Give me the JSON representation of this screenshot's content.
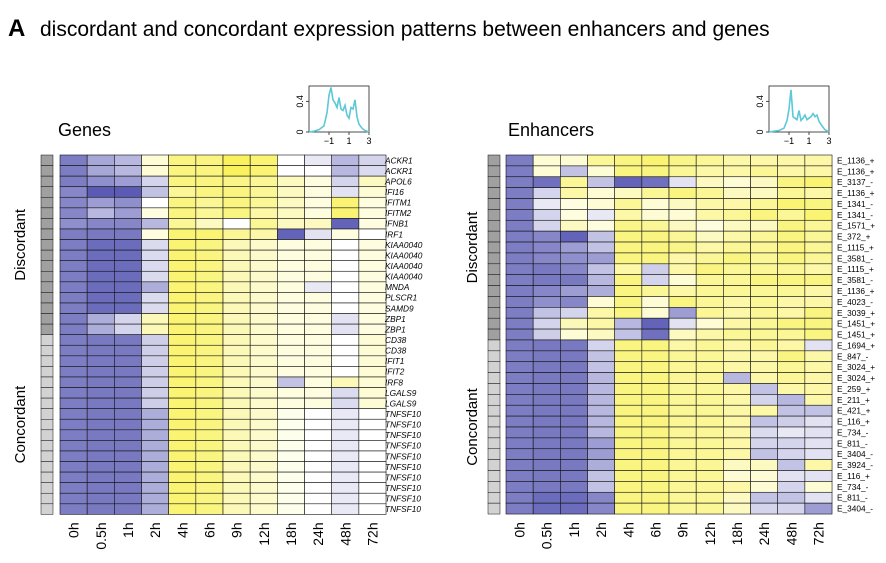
{
  "title": {
    "letter": "A",
    "text": "discordant and concordant expression patterns between enhancers and genes"
  },
  "group_labels": {
    "discordant": "Discordant",
    "concordant": "Concordant"
  },
  "colors": {
    "low": "#5b5bb5",
    "mid": "#ffffff",
    "high": "#f6ec12",
    "group_discordant": "#a0a0a0",
    "group_concordant": "#d2d2d2",
    "key_line": "#5cc8d8"
  },
  "chart_data": [
    {
      "type": "heatmap",
      "title": "Genes",
      "columns": [
        "0h",
        "0.5h",
        "1h",
        "2h",
        "4h",
        "6h",
        "9h",
        "12h",
        "18h",
        "24h",
        "48h",
        "72h"
      ],
      "rows": [
        "ACKR1",
        "ACKR1",
        "APOL6",
        "IFI16",
        "IFITM1",
        "IFITM2",
        "IFNB1",
        "IRF1",
        "KIAA0040",
        "KIAA0040",
        "KIAA0040",
        "KIAA0040",
        "MNDA",
        "PLSCR1",
        "SAMD9",
        "ZBP1",
        "ZBP1",
        "CD38",
        "CD38",
        "IFIT1",
        "IFIT2",
        "IRF8",
        "LGALS9",
        "LGALS9",
        "TNFSF10",
        "TNFSF10",
        "TNFSF10",
        "TNFSF10",
        "TNFSF10",
        "TNFSF10",
        "TNFSF10",
        "TNFSF10",
        "TNFSF10",
        "TNFSF10"
      ],
      "groups": [
        "discordant",
        "discordant",
        "discordant",
        "discordant",
        "discordant",
        "discordant",
        "discordant",
        "discordant",
        "discordant",
        "discordant",
        "discordant",
        "discordant",
        "discordant",
        "discordant",
        "discordant",
        "discordant",
        "discordant",
        "concordant",
        "concordant",
        "concordant",
        "concordant",
        "concordant",
        "concordant",
        "concordant",
        "concordant",
        "concordant",
        "concordant",
        "concordant",
        "concordant",
        "concordant",
        "concordant",
        "concordant",
        "concordant",
        "concordant"
      ],
      "values": [
        [
          -2.2,
          -1.3,
          -1.0,
          0.3,
          1.3,
          1.3,
          1.8,
          1.5,
          0.0,
          -0.2,
          -1.0,
          -0.5
        ],
        [
          -2.2,
          -1.3,
          -1.0,
          0.3,
          1.3,
          1.3,
          1.8,
          1.5,
          0.0,
          0.0,
          -1.0,
          -0.4
        ],
        [
          -2.2,
          -1.8,
          -1.5,
          -0.5,
          1.3,
          1.3,
          1.2,
          1.0,
          0.5,
          0.2,
          -0.5,
          0.5
        ],
        [
          -2.0,
          -3.0,
          -3.0,
          -0.8,
          1.0,
          1.3,
          1.3,
          1.0,
          0.5,
          0.2,
          -0.3,
          0.3
        ],
        [
          -2.0,
          -1.5,
          -1.8,
          0.0,
          1.3,
          1.0,
          1.3,
          1.0,
          0.5,
          0.2,
          1.5,
          0.2
        ],
        [
          -2.0,
          -1.0,
          -1.5,
          0.2,
          1.3,
          1.0,
          1.3,
          0.8,
          0.5,
          0.2,
          1.5,
          0.2
        ],
        [
          -1.8,
          -2.0,
          -2.0,
          -1.0,
          1.0,
          0.5,
          0.0,
          1.0,
          0.5,
          0.5,
          -2.8,
          0.2
        ],
        [
          -2.2,
          -2.3,
          -2.3,
          0.2,
          1.5,
          1.5,
          1.0,
          0.8,
          -2.8,
          -0.3,
          0.2,
          0.0
        ],
        [
          -2.2,
          -2.6,
          -2.6,
          -0.4,
          1.5,
          1.3,
          0.6,
          0.4,
          0.2,
          0.2,
          0.0,
          0.2
        ],
        [
          -2.2,
          -2.6,
          -2.6,
          -0.4,
          1.5,
          1.3,
          0.6,
          0.4,
          0.2,
          0.2,
          0.0,
          0.2
        ],
        [
          -2.2,
          -2.6,
          -2.6,
          -0.4,
          1.5,
          1.3,
          0.6,
          0.4,
          0.2,
          0.2,
          0.0,
          0.2
        ],
        [
          -2.2,
          -2.6,
          -2.6,
          -0.4,
          1.5,
          1.3,
          0.6,
          0.4,
          0.2,
          0.2,
          0.0,
          0.2
        ],
        [
          -2.2,
          -2.6,
          -2.6,
          -1.2,
          1.5,
          1.3,
          0.6,
          0.4,
          0.2,
          -0.2,
          0.0,
          0.2
        ],
        [
          -2.2,
          -2.6,
          -2.6,
          -0.4,
          1.5,
          1.3,
          0.6,
          0.4,
          0.2,
          0.2,
          0.0,
          0.2
        ],
        [
          -2.2,
          -2.6,
          -2.6,
          -0.4,
          1.5,
          1.3,
          0.6,
          0.4,
          0.2,
          0.2,
          0.0,
          0.2
        ],
        [
          -2.2,
          -1.2,
          -0.5,
          0.6,
          1.5,
          1.3,
          0.6,
          0.4,
          0.2,
          0.2,
          -0.3,
          0.2
        ],
        [
          -2.2,
          -1.2,
          -0.5,
          0.6,
          1.5,
          1.3,
          0.6,
          0.4,
          0.2,
          0.2,
          -0.3,
          0.2
        ],
        [
          -2.2,
          -2.3,
          -2.3,
          -0.6,
          1.5,
          1.3,
          0.6,
          0.4,
          0.2,
          0.2,
          0.0,
          0.3
        ],
        [
          -2.2,
          -2.3,
          -2.3,
          -0.6,
          1.5,
          1.3,
          0.6,
          0.4,
          0.2,
          0.2,
          0.0,
          0.3
        ],
        [
          -2.2,
          -2.3,
          -2.3,
          -0.6,
          1.5,
          1.3,
          0.6,
          0.4,
          0.2,
          0.2,
          0.0,
          0.3
        ],
        [
          -2.2,
          -2.3,
          -2.3,
          -0.6,
          1.5,
          1.3,
          0.6,
          0.4,
          0.2,
          0.2,
          0.0,
          0.3
        ],
        [
          -2.2,
          -2.3,
          -2.3,
          -0.6,
          1.5,
          1.3,
          0.6,
          0.4,
          -0.8,
          0.2,
          0.6,
          0.3
        ],
        [
          -2.2,
          -2.3,
          -2.3,
          -0.6,
          1.5,
          1.3,
          0.6,
          0.4,
          0.2,
          0.2,
          -0.4,
          0.3
        ],
        [
          -2.2,
          -2.3,
          -2.3,
          -0.6,
          1.5,
          1.3,
          0.6,
          0.4,
          0.2,
          0.2,
          -0.4,
          0.3
        ],
        [
          -2.2,
          -2.3,
          -2.3,
          -1.2,
          1.5,
          1.3,
          0.6,
          0.4,
          0.1,
          0.0,
          -0.2,
          0.0
        ],
        [
          -2.2,
          -2.3,
          -2.3,
          -1.2,
          1.5,
          1.3,
          0.6,
          0.4,
          0.1,
          0.0,
          -0.2,
          0.0
        ],
        [
          -2.2,
          -2.3,
          -2.3,
          -1.2,
          1.5,
          1.3,
          0.6,
          0.4,
          0.1,
          0.0,
          -0.2,
          0.0
        ],
        [
          -2.2,
          -2.3,
          -2.3,
          -1.2,
          1.5,
          1.3,
          0.6,
          0.4,
          0.1,
          0.0,
          -0.2,
          0.0
        ],
        [
          -2.2,
          -2.3,
          -2.3,
          -1.2,
          1.5,
          1.3,
          0.6,
          0.4,
          0.1,
          0.0,
          -0.2,
          0.0
        ],
        [
          -2.2,
          -2.3,
          -2.3,
          -1.2,
          1.5,
          1.3,
          0.6,
          0.4,
          0.1,
          0.0,
          -0.2,
          0.0
        ],
        [
          -2.2,
          -2.3,
          -2.3,
          -1.2,
          1.5,
          1.3,
          0.6,
          0.4,
          0.1,
          0.0,
          -0.2,
          0.0
        ],
        [
          -2.2,
          -2.3,
          -2.3,
          -1.2,
          1.5,
          1.3,
          0.6,
          0.4,
          0.1,
          0.0,
          -0.2,
          0.0
        ],
        [
          -2.2,
          -2.3,
          -2.3,
          -1.2,
          1.5,
          1.3,
          0.6,
          0.4,
          0.1,
          0.0,
          -0.2,
          0.0
        ],
        [
          -2.2,
          -2.3,
          -2.3,
          -1.2,
          1.5,
          1.3,
          0.6,
          0.4,
          0.1,
          0.0,
          -0.2,
          0.0
        ]
      ],
      "color_key": {
        "x_ticks": [
          "−1",
          "1",
          "3"
        ],
        "y_ticks": [
          "0",
          "0.4"
        ],
        "xlim": [
          -3,
          3
        ],
        "ylim": [
          0,
          0.6
        ],
        "density_x": [
          -3,
          -2.5,
          -2,
          -1.5,
          -1.2,
          -1,
          -0.8,
          -0.6,
          -0.4,
          -0.2,
          0,
          0.2,
          0.4,
          0.6,
          0.8,
          1,
          1.2,
          1.4,
          1.6,
          1.8,
          2,
          2.3,
          2.6,
          3
        ],
        "density_y": [
          0,
          0.01,
          0.03,
          0.08,
          0.25,
          0.48,
          0.58,
          0.42,
          0.38,
          0.32,
          0.45,
          0.3,
          0.28,
          0.35,
          0.22,
          0.18,
          0.32,
          0.3,
          0.42,
          0.2,
          0.1,
          0.05,
          0.02,
          0
        ]
      }
    },
    {
      "type": "heatmap",
      "title": "Enhancers",
      "columns": [
        "0h",
        "0.5h",
        "1h",
        "2h",
        "4h",
        "6h",
        "9h",
        "12h",
        "18h",
        "24h",
        "48h",
        "72h"
      ],
      "rows": [
        "E_1136_+",
        "E_1136_+",
        "E_3137_-",
        "E_1136_+",
        "E_1341_-",
        "E_1341_-",
        "E_1571_+",
        "E_372_+",
        "E_1115_+",
        "E_3581_-",
        "E_1115_+",
        "E_3581_-",
        "E_1136_+",
        "E_4023_-",
        "E_3039_+",
        "E_1451_+",
        "E_1451_+",
        "E_1694_+",
        "E_847_-",
        "E_3024_+",
        "E_3024_+",
        "E_259_+",
        "E_211_+",
        "E_421_+",
        "E_116_+",
        "E_734_-",
        "E_811_-",
        "E_3404_-",
        "E_3924_-",
        "E_116_+",
        "E_734_-",
        "E_811_-",
        "E_3404_-"
      ],
      "groups": [
        "discordant",
        "discordant",
        "discordant",
        "discordant",
        "discordant",
        "discordant",
        "discordant",
        "discordant",
        "discordant",
        "discordant",
        "discordant",
        "discordant",
        "discordant",
        "discordant",
        "discordant",
        "discordant",
        "discordant",
        "concordant",
        "concordant",
        "concordant",
        "concordant",
        "concordant",
        "concordant",
        "concordant",
        "concordant",
        "concordant",
        "concordant",
        "concordant",
        "concordant",
        "concordant",
        "concordant",
        "concordant",
        "concordant"
      ],
      "values": [
        [
          -2.2,
          0.3,
          0.3,
          1.0,
          1.3,
          1.5,
          1.2,
          1.0,
          0.8,
          0.8,
          0.8,
          0.8
        ],
        [
          -2.2,
          0.3,
          -0.8,
          0.3,
          1.3,
          1.3,
          1.0,
          0.8,
          0.8,
          1.0,
          0.8,
          0.8
        ],
        [
          -2.2,
          -2.5,
          1.0,
          -0.8,
          -2.8,
          -2.5,
          -0.3,
          0.5,
          0.3,
          0.5,
          1.3,
          1.5
        ],
        [
          -2.2,
          -0.5,
          0.8,
          0.3,
          0.5,
          1.0,
          1.3,
          1.0,
          0.5,
          0.5,
          1.0,
          0.8
        ],
        [
          -2.2,
          -0.2,
          0.2,
          0.3,
          1.0,
          0.3,
          0.5,
          0.8,
          0.8,
          1.0,
          1.5,
          1.3
        ],
        [
          -2.2,
          -0.5,
          0.2,
          -0.2,
          0.8,
          0.3,
          0.3,
          0.8,
          1.0,
          1.3,
          1.0,
          1.5
        ],
        [
          -2.2,
          -0.5,
          0.5,
          0.2,
          1.2,
          1.0,
          0.5,
          0.2,
          0.5,
          0.5,
          1.3,
          1.0
        ],
        [
          -2.2,
          -2.0,
          -2.8,
          -0.8,
          1.3,
          1.3,
          1.0,
          0.5,
          0.8,
          1.0,
          1.3,
          1.0
        ],
        [
          -2.2,
          -2.0,
          -1.5,
          -0.8,
          1.3,
          1.3,
          1.2,
          0.8,
          1.0,
          1.0,
          1.3,
          1.0
        ],
        [
          -2.2,
          -2.0,
          -1.8,
          -1.5,
          1.3,
          1.3,
          0.8,
          1.0,
          1.3,
          1.0,
          1.3,
          1.0
        ],
        [
          -2.2,
          -2.3,
          -2.0,
          -0.8,
          0.8,
          -0.6,
          0.8,
          1.3,
          1.0,
          1.0,
          1.0,
          0.8
        ],
        [
          -2.2,
          -2.3,
          -2.3,
          -1.0,
          1.3,
          -0.5,
          0.3,
          1.0,
          1.0,
          1.3,
          1.3,
          1.3
        ],
        [
          -2.2,
          -2.0,
          -1.5,
          -1.2,
          1.3,
          1.0,
          0.8,
          1.0,
          1.0,
          1.0,
          1.0,
          0.8
        ],
        [
          -2.2,
          -1.8,
          -2.0,
          0.3,
          1.3,
          0.3,
          1.3,
          1.0,
          0.8,
          1.0,
          0.8,
          0.8
        ],
        [
          -2.2,
          -0.8,
          -0.5,
          0.8,
          1.3,
          0.3,
          -1.5,
          1.0,
          0.8,
          1.0,
          0.8,
          1.3
        ],
        [
          -2.2,
          -0.5,
          0.6,
          0.8,
          -1.0,
          -2.8,
          -0.3,
          0.3,
          0.8,
          1.0,
          1.3,
          1.3
        ],
        [
          -2.2,
          -0.6,
          0.3,
          0.5,
          -0.8,
          -2.5,
          0.5,
          0.8,
          1.0,
          1.0,
          1.0,
          1.3
        ],
        [
          -2.2,
          -2.3,
          -2.3,
          -0.5,
          1.3,
          1.3,
          0.8,
          1.0,
          0.8,
          1.0,
          0.8,
          -0.3
        ],
        [
          -2.2,
          -2.3,
          -2.3,
          -0.8,
          1.3,
          1.3,
          1.0,
          1.0,
          0.8,
          0.8,
          1.3,
          0.8
        ],
        [
          -2.2,
          -2.3,
          -2.3,
          -0.8,
          1.3,
          1.3,
          1.0,
          1.0,
          0.8,
          0.8,
          1.0,
          0.8
        ],
        [
          -2.2,
          -2.3,
          -2.3,
          -1.0,
          1.3,
          1.3,
          1.0,
          1.0,
          -1.0,
          0.8,
          1.0,
          0.8
        ],
        [
          -2.2,
          -2.3,
          -2.3,
          -1.0,
          1.3,
          1.3,
          1.0,
          1.0,
          0.8,
          -0.8,
          0.8,
          0.8
        ],
        [
          -2.2,
          -2.3,
          -2.3,
          -1.0,
          1.3,
          1.3,
          1.0,
          1.0,
          0.8,
          -0.5,
          -1.0,
          0.8
        ],
        [
          -2.2,
          -2.3,
          -2.3,
          -1.0,
          1.3,
          1.3,
          1.0,
          1.0,
          0.8,
          0.8,
          -0.8,
          -0.8
        ],
        [
          -2.2,
          -2.3,
          -2.3,
          -1.0,
          1.3,
          1.3,
          1.0,
          1.0,
          0.8,
          -0.8,
          -0.6,
          -0.3
        ],
        [
          -2.2,
          -2.3,
          -2.3,
          -1.0,
          1.3,
          1.3,
          1.0,
          1.0,
          0.8,
          -0.4,
          -0.2,
          -0.3
        ],
        [
          -2.2,
          -2.3,
          -2.3,
          -1.5,
          1.3,
          1.3,
          1.0,
          1.0,
          0.8,
          -0.5,
          -0.5,
          -0.3
        ],
        [
          -2.2,
          -2.3,
          -2.3,
          -1.5,
          1.3,
          1.3,
          1.0,
          1.0,
          0.8,
          -0.8,
          -0.5,
          -0.3
        ],
        [
          -2.2,
          -2.3,
          -2.3,
          -1.2,
          1.3,
          1.3,
          1.0,
          1.0,
          0.5,
          0.5,
          -0.8,
          0.8
        ],
        [
          -2.2,
          -2.3,
          -2.3,
          -0.8,
          1.3,
          1.3,
          1.0,
          1.0,
          0.3,
          0.3,
          -0.3,
          -0.3
        ],
        [
          -2.2,
          -2.3,
          -2.3,
          -0.8,
          1.3,
          1.3,
          1.0,
          1.0,
          0.8,
          0.3,
          -0.5,
          0.3
        ],
        [
          -2.2,
          -2.6,
          -2.6,
          -2.0,
          1.3,
          1.3,
          1.0,
          1.0,
          0.5,
          -0.8,
          -0.8,
          -0.3
        ],
        [
          -2.2,
          -2.6,
          -2.6,
          -2.0,
          1.3,
          1.3,
          1.0,
          1.0,
          0.5,
          -0.5,
          -0.5,
          -1.5
        ]
      ],
      "color_key": {
        "x_ticks": [
          "−1",
          "1",
          "3"
        ],
        "y_ticks": [
          "0",
          "0.4"
        ],
        "xlim": [
          -3,
          3
        ],
        "ylim": [
          0,
          0.6
        ],
        "density_x": [
          -3,
          -2.5,
          -2,
          -1.5,
          -1.2,
          -1,
          -0.8,
          -0.6,
          -0.4,
          -0.2,
          0,
          0.2,
          0.4,
          0.6,
          0.8,
          1,
          1.2,
          1.4,
          1.6,
          1.8,
          2,
          2.3,
          2.6,
          3
        ],
        "density_y": [
          0,
          0.01,
          0.02,
          0.05,
          0.15,
          0.3,
          0.55,
          0.2,
          0.18,
          0.16,
          0.28,
          0.15,
          0.18,
          0.22,
          0.16,
          0.18,
          0.2,
          0.24,
          0.2,
          0.22,
          0.14,
          0.08,
          0.03,
          0
        ]
      }
    }
  ]
}
